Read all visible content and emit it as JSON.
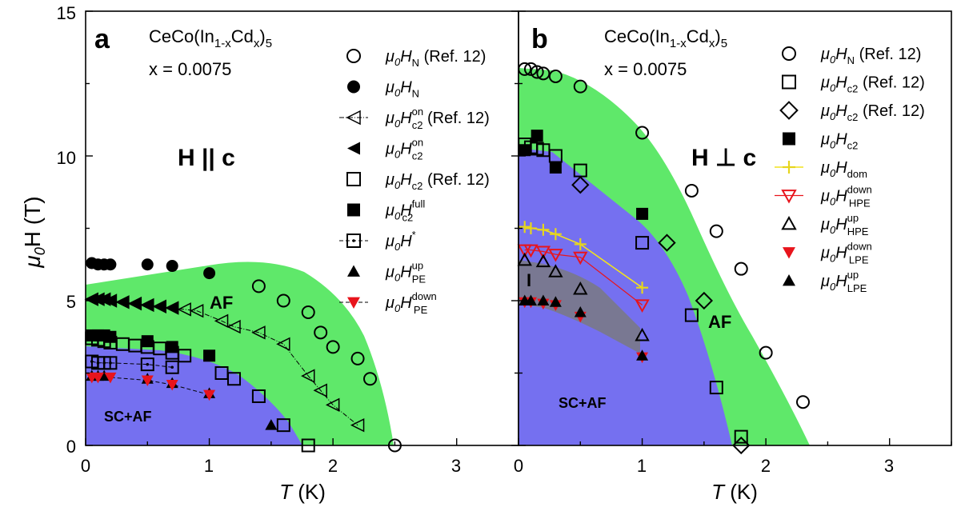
{
  "figure": {
    "ylabel_mu": "μ",
    "ylabel_sub": "0",
    "ylabel_rest": "H (T)",
    "yticks": [
      "0",
      "5",
      "10",
      "15"
    ],
    "xlabel_T": "T",
    "xlabel_unit": " (K)"
  },
  "colors": {
    "af_region": "#5fe86a",
    "sc_region": "#7570f0",
    "gray_region": "#8a8a8a",
    "red": "#e8141c",
    "yellow": "#f5ee3a",
    "dark": "#000000"
  },
  "chart_data": [
    {
      "type": "scatter",
      "panel_label": "a",
      "compound": "CeCo(In",
      "compound_sub1": "1-x",
      "compound_mid": "Cd",
      "compound_sub2": "x",
      "compound_end": ")",
      "compound_sub3": "5",
      "composition": "x = 0.0075",
      "field_orientation": "H || c",
      "regions": [
        {
          "name": "AF",
          "label": "AF",
          "color": "#5fe86a"
        },
        {
          "name": "SC+AF",
          "label": "SC+AF",
          "color": "#7570f0"
        }
      ],
      "xlabel": "T (K)",
      "ylabel": "μ0H (T)",
      "xlim": [
        0,
        3.5
      ],
      "ylim": [
        0,
        15
      ],
      "xticks": [
        "0",
        "1",
        "2",
        "3"
      ],
      "legend": [
        {
          "sym": "circle-open",
          "main": "μ0H",
          "sub": "N",
          "sup": "",
          "tail": "(Ref. 12)",
          "line": false
        },
        {
          "sym": "circle-filled",
          "main": "μ0H",
          "sub": "N",
          "sup": "",
          "tail": "",
          "line": false
        },
        {
          "sym": "tri-left-open",
          "main": "μ0H",
          "sub": "c2",
          "sup": "on",
          "tail": "(Ref. 12)",
          "line": true,
          "line_color": "#000000"
        },
        {
          "sym": "tri-left-filled",
          "main": "μ0H",
          "sub": "c2",
          "sup": "on",
          "tail": "",
          "line": false
        },
        {
          "sym": "square-open",
          "main": "μ0H",
          "sub": "c2",
          "sup": "",
          "tail": "(Ref. 12)",
          "line": false
        },
        {
          "sym": "square-filled",
          "main": "μ0H",
          "sub": "c2",
          "sup": "full",
          "tail": "",
          "line": false
        },
        {
          "sym": "square-dot",
          "main": "μ0H",
          "sub": "",
          "sup": "*",
          "tail": "",
          "line": true,
          "line_color": "#000000"
        },
        {
          "sym": "tri-up-filled",
          "main": "μ0H",
          "sub": "PE",
          "sup": "up",
          "tail": "",
          "line": false
        },
        {
          "sym": "tri-down-red",
          "main": "μ0H",
          "sub": "PE",
          "sup": "down",
          "tail": "",
          "line": true,
          "line_color": "#f5ee3a"
        }
      ],
      "series": [
        {
          "name": "μ0HN (Ref. 12)",
          "sym": "circle-open",
          "points": [
            [
              1.4,
              5.5
            ],
            [
              1.6,
              5.0
            ],
            [
              1.8,
              4.6
            ],
            [
              1.9,
              3.9
            ],
            [
              2.0,
              3.4
            ],
            [
              2.2,
              3.0
            ],
            [
              2.3,
              2.3
            ],
            [
              2.5,
              0.0
            ]
          ]
        },
        {
          "name": "μ0HN",
          "sym": "circle-filled",
          "points": [
            [
              0.05,
              6.3
            ],
            [
              0.1,
              6.25
            ],
            [
              0.15,
              6.25
            ],
            [
              0.2,
              6.25
            ],
            [
              0.5,
              6.25
            ],
            [
              0.7,
              6.2
            ],
            [
              1.0,
              5.95
            ]
          ]
        },
        {
          "name": "μ0Hc2on (Ref. 12)",
          "sym": "tri-left-open",
          "line": true,
          "points": [
            [
              0.05,
              5.05
            ],
            [
              0.1,
              5.05
            ],
            [
              0.15,
              5.05
            ],
            [
              0.2,
              5.0
            ],
            [
              0.3,
              4.95
            ],
            [
              0.4,
              4.9
            ],
            [
              0.5,
              4.85
            ],
            [
              0.6,
              4.8
            ],
            [
              0.7,
              4.75
            ],
            [
              0.8,
              4.7
            ],
            [
              0.9,
              4.65
            ],
            [
              1.1,
              4.3
            ],
            [
              1.2,
              4.1
            ],
            [
              1.4,
              3.9
            ],
            [
              1.6,
              3.5
            ],
            [
              1.8,
              2.4
            ],
            [
              1.9,
              1.9
            ],
            [
              2.0,
              1.4
            ],
            [
              2.2,
              0.7
            ]
          ]
        },
        {
          "name": "μ0Hc2on",
          "sym": "tri-left-filled",
          "points": [
            [
              0.05,
              5.05
            ],
            [
              0.1,
              5.05
            ],
            [
              0.15,
              5.05
            ],
            [
              0.2,
              5.0
            ],
            [
              0.3,
              4.95
            ],
            [
              0.4,
              4.9
            ],
            [
              0.5,
              4.85
            ],
            [
              0.6,
              4.8
            ],
            [
              0.7,
              4.75
            ]
          ]
        },
        {
          "name": "μ0Hc2 (Ref. 12)",
          "sym": "square-open",
          "points": [
            [
              0.05,
              3.7
            ],
            [
              0.1,
              3.65
            ],
            [
              0.15,
              3.6
            ],
            [
              0.2,
              3.55
            ],
            [
              0.3,
              3.5
            ],
            [
              0.4,
              3.45
            ],
            [
              0.5,
              3.4
            ],
            [
              0.6,
              3.35
            ],
            [
              0.7,
              3.2
            ],
            [
              0.8,
              3.1
            ],
            [
              1.1,
              2.5
            ],
            [
              1.2,
              2.3
            ],
            [
              1.4,
              1.7
            ],
            [
              1.6,
              0.7
            ],
            [
              1.8,
              0.0
            ]
          ]
        },
        {
          "name": "μ0Hc2full",
          "sym": "square-filled",
          "points": [
            [
              0.05,
              3.8
            ],
            [
              0.1,
              3.8
            ],
            [
              0.15,
              3.8
            ],
            [
              0.2,
              3.75
            ],
            [
              0.5,
              3.6
            ],
            [
              0.7,
              3.4
            ],
            [
              1.0,
              3.1
            ]
          ]
        },
        {
          "name": "μ0H*",
          "sym": "square-dot",
          "line": true,
          "points": [
            [
              0.05,
              2.9
            ],
            [
              0.1,
              2.85
            ],
            [
              0.15,
              2.85
            ],
            [
              0.2,
              2.85
            ],
            [
              0.5,
              2.8
            ],
            [
              0.7,
              2.7
            ]
          ]
        },
        {
          "name": "μ0HPEup",
          "sym": "tri-up-filled",
          "points": [
            [
              0.05,
              2.4
            ],
            [
              0.1,
              2.4
            ],
            [
              0.15,
              2.4
            ],
            [
              0.5,
              2.3
            ],
            [
              0.7,
              2.15
            ],
            [
              1.0,
              1.8
            ],
            [
              1.5,
              0.7
            ]
          ]
        },
        {
          "name": "μ0HPEdown",
          "sym": "tri-down-red",
          "line": true,
          "points": [
            [
              0.05,
              2.35
            ],
            [
              0.1,
              2.35
            ],
            [
              0.2,
              2.35
            ],
            [
              0.5,
              2.25
            ],
            [
              0.7,
              2.1
            ],
            [
              1.0,
              1.75
            ]
          ]
        }
      ]
    },
    {
      "type": "scatter",
      "panel_label": "b",
      "compound": "CeCo(In",
      "compound_sub1": "1-x",
      "compound_mid": "Cd",
      "compound_sub2": "x",
      "compound_end": ")",
      "compound_sub3": "5",
      "composition": "x = 0.0075",
      "field_orientation": "H ⊥ c",
      "region_marker": "I",
      "regions": [
        {
          "name": "AF",
          "label": "AF",
          "color": "#5fe86a"
        },
        {
          "name": "SC+AF",
          "label": "SC+AF",
          "color": "#7570f0"
        }
      ],
      "xlabel": "T (K)",
      "xlim": [
        0,
        3.5
      ],
      "ylim": [
        0,
        15
      ],
      "xticks": [
        "0",
        "1",
        "2",
        "3"
      ],
      "legend": [
        {
          "sym": "circle-open",
          "main": "μ0H",
          "sub": "N",
          "sup": "",
          "tail": "(Ref. 12)",
          "line": false
        },
        {
          "sym": "square-open",
          "main": "μ0H",
          "sub": "c2",
          "sup": "",
          "tail": "(Ref. 12)",
          "line": false
        },
        {
          "sym": "diamond-open",
          "main": "μ0H",
          "sub": "c2",
          "sup": "",
          "tail": "(Ref. 12)",
          "line": false
        },
        {
          "sym": "square-filled",
          "main": "μ0H",
          "sub": "c2",
          "sup": "",
          "tail": "",
          "line": false
        },
        {
          "sym": "plus-yellow",
          "main": "μ0H",
          "sub": "dom",
          "sup": "",
          "tail": "",
          "line": true,
          "line_color": "#f5ee3a"
        },
        {
          "sym": "tri-down-open-red",
          "main": "μ0H",
          "sub": "HPE",
          "sup": "down",
          "tail": "",
          "line": true,
          "line_color": "#e8141c"
        },
        {
          "sym": "tri-up-open",
          "main": "μ0H",
          "sub": "HPE",
          "sup": "up",
          "tail": "",
          "line": false
        },
        {
          "sym": "tri-down-red",
          "main": "μ0H",
          "sub": "LPE",
          "sup": "down",
          "tail": "",
          "line": false
        },
        {
          "sym": "tri-up-filled",
          "main": "μ0H",
          "sub": "LPE",
          "sup": "up",
          "tail": "",
          "line": false
        }
      ],
      "series": [
        {
          "name": "μ0HN (Ref. 12)",
          "sym": "circle-open",
          "points": [
            [
              0.05,
              13.0
            ],
            [
              0.1,
              13.0
            ],
            [
              0.15,
              12.9
            ],
            [
              0.2,
              12.85
            ],
            [
              0.3,
              12.75
            ],
            [
              0.5,
              12.4
            ],
            [
              1.0,
              10.8
            ],
            [
              1.4,
              8.8
            ],
            [
              1.6,
              7.4
            ],
            [
              1.8,
              6.1
            ],
            [
              2.0,
              3.2
            ],
            [
              2.3,
              1.5
            ]
          ]
        },
        {
          "name": "μ0Hc2 (Ref. 12)",
          "sym": "square-open",
          "points": [
            [
              0.05,
              10.4
            ],
            [
              0.1,
              10.3
            ],
            [
              0.15,
              10.25
            ],
            [
              0.2,
              10.2
            ],
            [
              0.3,
              10.0
            ],
            [
              0.5,
              9.5
            ],
            [
              1.0,
              7.0
            ],
            [
              1.4,
              4.5
            ],
            [
              1.6,
              2.0
            ],
            [
              1.8,
              0.3
            ]
          ]
        },
        {
          "name": "μ0Hc2 (Ref. 12) diamond",
          "sym": "diamond-open",
          "points": [
            [
              0.5,
              9.0
            ],
            [
              1.2,
              7.0
            ],
            [
              1.5,
              5.0
            ],
            [
              1.8,
              0.0
            ]
          ]
        },
        {
          "name": "μ0Hc2",
          "sym": "square-filled",
          "points": [
            [
              0.05,
              10.2
            ],
            [
              0.15,
              10.7
            ],
            [
              0.3,
              9.6
            ],
            [
              1.0,
              8.0
            ]
          ]
        },
        {
          "name": "μ0Hdom",
          "sym": "plus-yellow",
          "line": true,
          "points": [
            [
              0.05,
              7.55
            ],
            [
              0.1,
              7.5
            ],
            [
              0.2,
              7.45
            ],
            [
              0.3,
              7.3
            ],
            [
              0.5,
              6.95
            ],
            [
              1.0,
              5.45
            ]
          ]
        },
        {
          "name": "μ0HHPEdown",
          "sym": "tri-down-open-red",
          "line": true,
          "points": [
            [
              0.05,
              6.75
            ],
            [
              0.1,
              6.75
            ],
            [
              0.2,
              6.7
            ],
            [
              0.3,
              6.6
            ],
            [
              0.5,
              6.5
            ],
            [
              1.0,
              4.85
            ]
          ]
        },
        {
          "name": "μ0HHPEup",
          "sym": "tri-up-open",
          "points": [
            [
              0.05,
              6.4
            ],
            [
              0.2,
              6.35
            ],
            [
              0.3,
              6.0
            ],
            [
              0.5,
              5.4
            ],
            [
              1.0,
              3.8
            ]
          ]
        },
        {
          "name": "μ0HLPEdown",
          "sym": "tri-down-red",
          "points": [
            [
              0.05,
              4.95
            ],
            [
              0.1,
              4.95
            ],
            [
              0.2,
              4.9
            ],
            [
              0.3,
              4.85
            ],
            [
              0.5,
              4.45
            ],
            [
              1.0,
              3.05
            ]
          ]
        },
        {
          "name": "μ0HLPEup",
          "sym": "tri-up-filled",
          "points": [
            [
              0.05,
              5.0
            ],
            [
              0.1,
              5.0
            ],
            [
              0.2,
              5.0
            ],
            [
              0.3,
              4.95
            ],
            [
              0.5,
              4.6
            ],
            [
              1.0,
              3.1
            ]
          ]
        }
      ]
    }
  ]
}
